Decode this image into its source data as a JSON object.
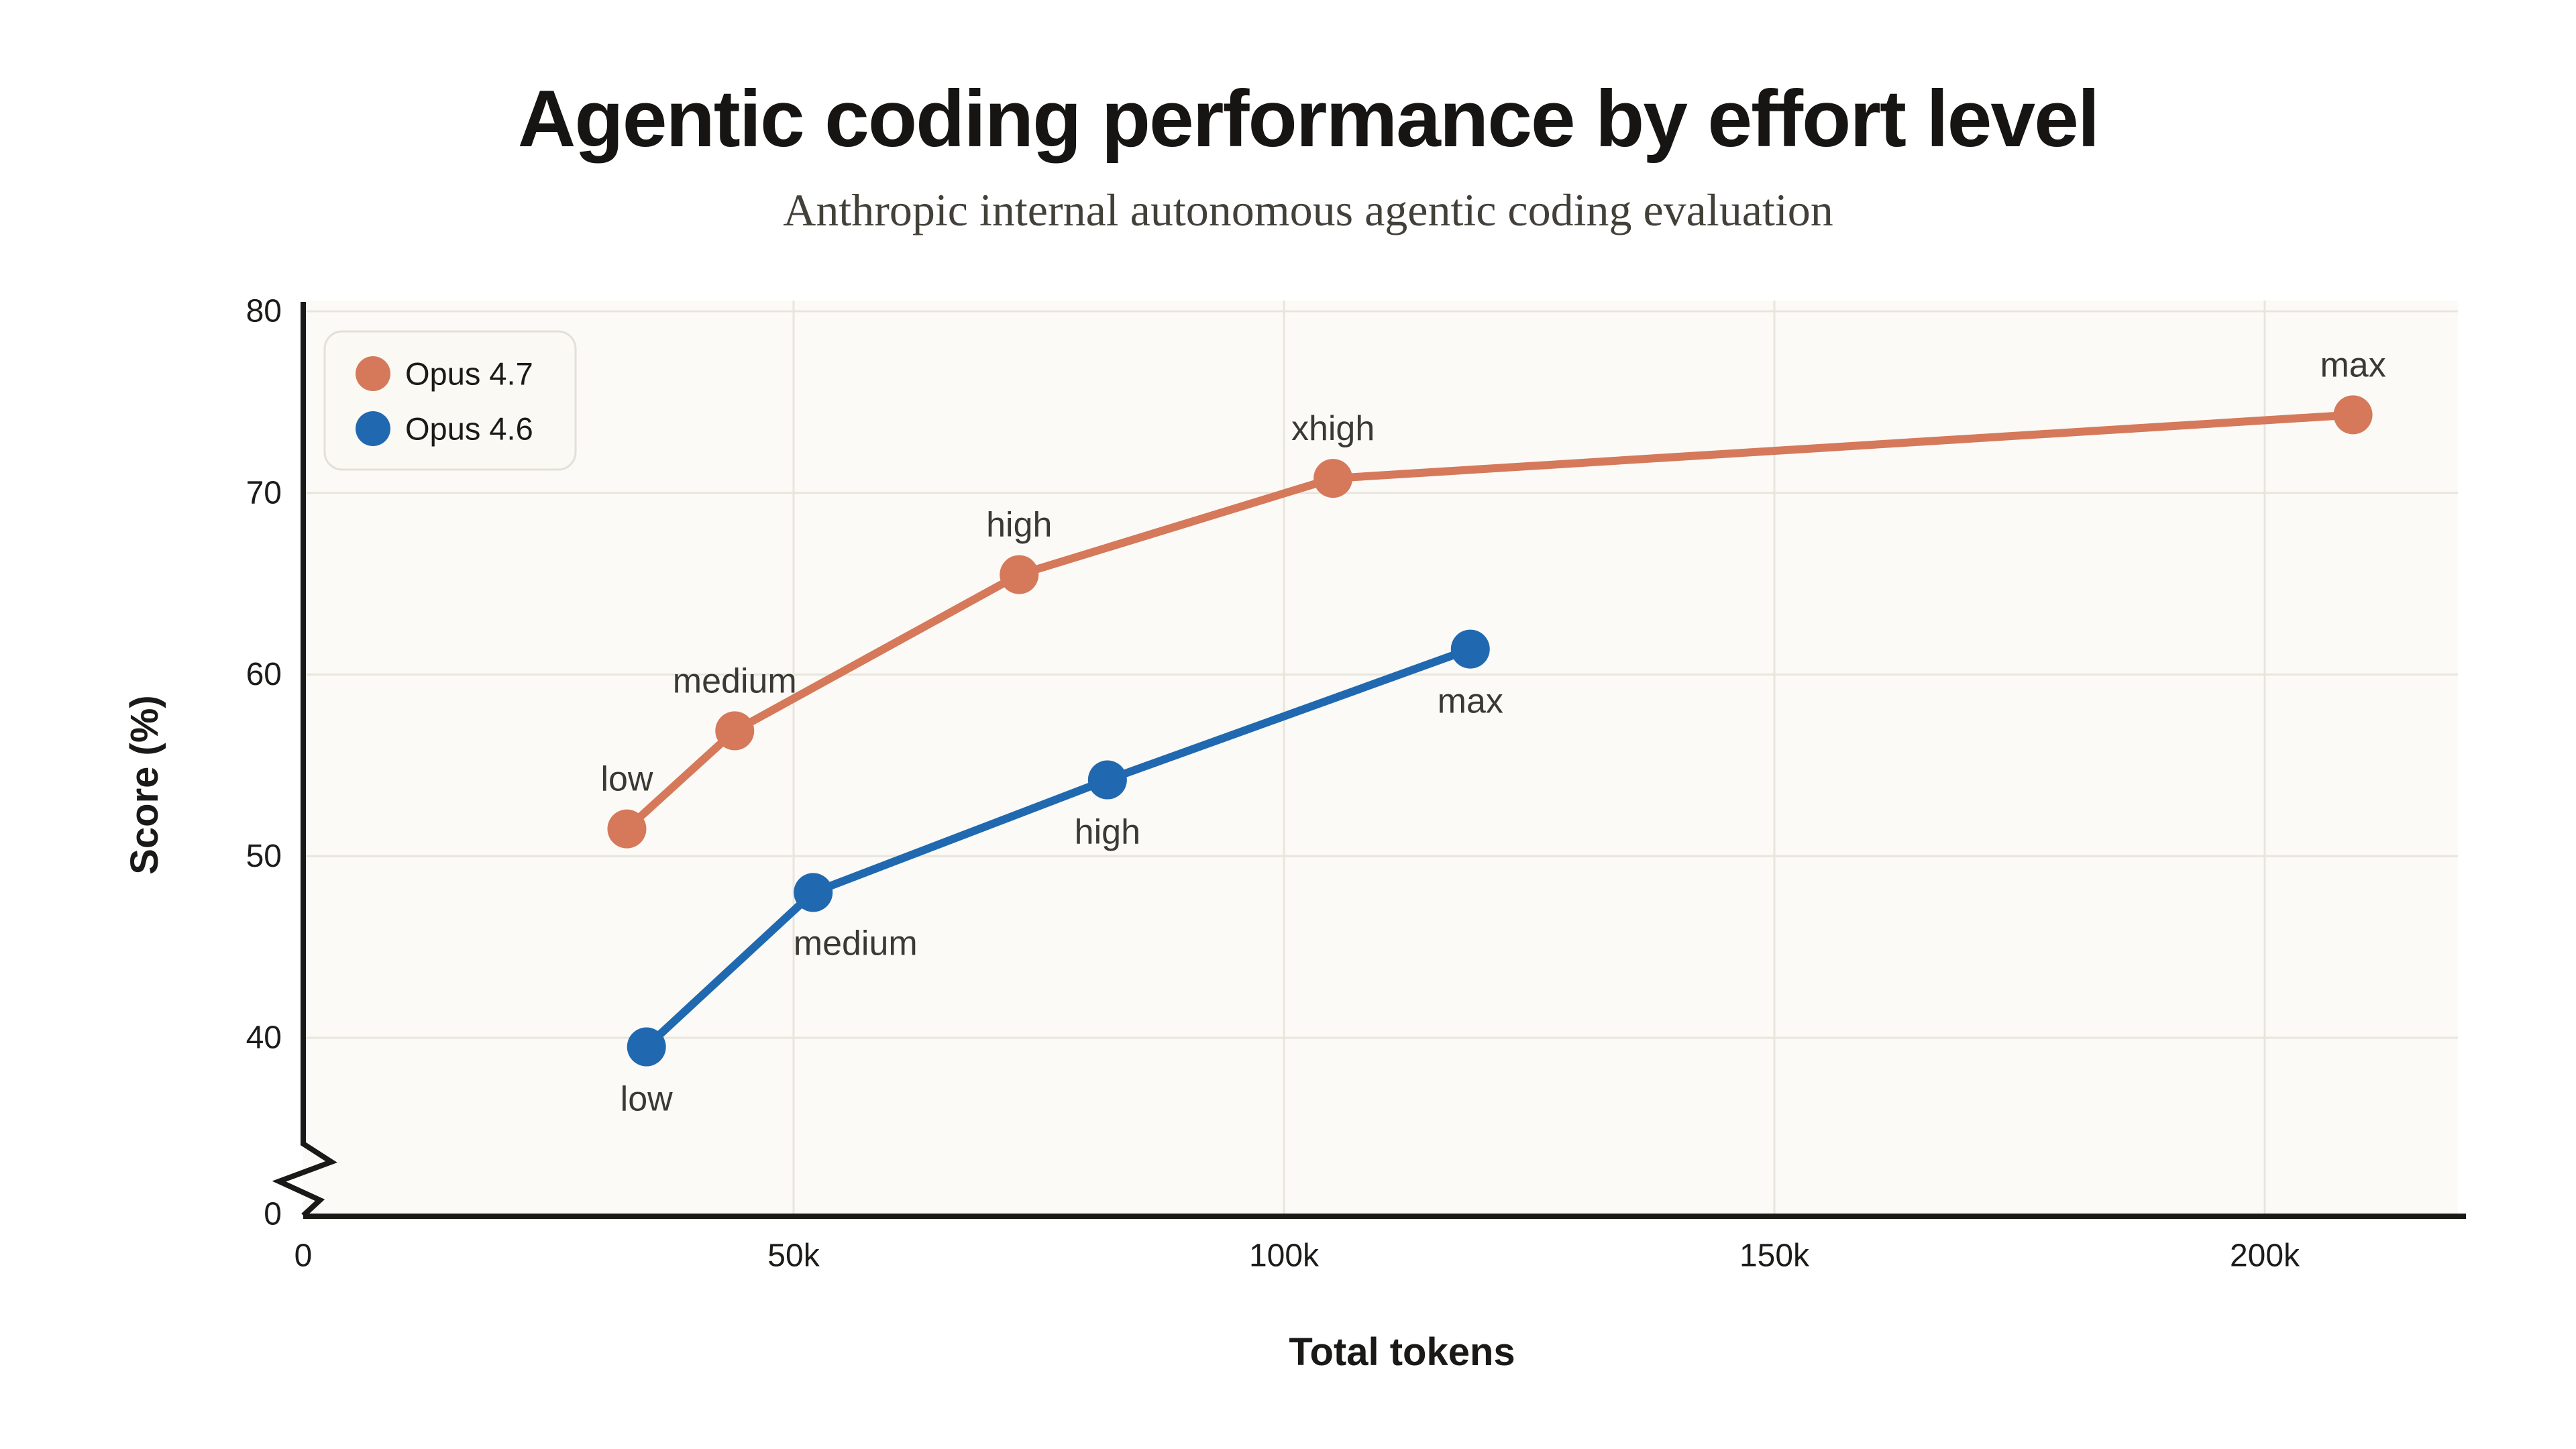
{
  "title": "Agentic coding performance by effort level",
  "subtitle": "Anthropic internal autonomous agentic coding evaluation",
  "x_axis": {
    "label": "Total tokens",
    "ticks": [
      {
        "label": "0",
        "value": 0
      },
      {
        "label": "50k",
        "value": 50
      },
      {
        "label": "100k",
        "value": 100
      },
      {
        "label": "150k",
        "value": 150
      },
      {
        "label": "200k",
        "value": 200
      }
    ]
  },
  "y_axis": {
    "label": "Score (%)",
    "has_break": true,
    "ticks": [
      {
        "label": "0",
        "value": 0
      },
      {
        "label": "40",
        "value": 40
      },
      {
        "label": "50",
        "value": 50
      },
      {
        "label": "60",
        "value": 60
      },
      {
        "label": "70",
        "value": 70
      },
      {
        "label": "80",
        "value": 80
      }
    ]
  },
  "style": {
    "orange": "#D5795A",
    "blue": "#2069B0",
    "plot_background": "#FBFAF6",
    "gridline_color": "#E8E5DC",
    "axis_color": "#1A1917",
    "page_background": "#FFFFFF"
  },
  "chart_data": {
    "type": "line",
    "title": "Agentic coding performance by effort level",
    "subtitle": "Anthropic internal autonomous agentic coding evaluation",
    "xlabel": "Total tokens",
    "ylabel": "Score (%)",
    "x_unit": "tokens (thousands)",
    "xlim": [
      0,
      220
    ],
    "ylim_visible": [
      40,
      80
    ],
    "y_axis_break_between": [
      0,
      40
    ],
    "grid": true,
    "legend_position": "top-left",
    "series": [
      {
        "name": "Opus 4.7",
        "color": "#D5795A",
        "points": [
          {
            "x_tokens_k": 33,
            "y": 51.5,
            "label": "low",
            "label_pos": "above"
          },
          {
            "x_tokens_k": 44,
            "y": 56.9,
            "label": "medium",
            "label_pos": "above"
          },
          {
            "x_tokens_k": 73,
            "y": 65.5,
            "label": "high",
            "label_pos": "above"
          },
          {
            "x_tokens_k": 105,
            "y": 70.8,
            "label": "xhigh",
            "label_pos": "above"
          },
          {
            "x_tokens_k": 209,
            "y": 74.3,
            "label": "max",
            "label_pos": "above"
          }
        ]
      },
      {
        "name": "Opus 4.6",
        "color": "#2069B0",
        "points": [
          {
            "x_tokens_k": 35,
            "y": 39.5,
            "label": "low",
            "label_pos": "below"
          },
          {
            "x_tokens_k": 52,
            "y": 48.0,
            "label": "medium",
            "label_pos": "below-right"
          },
          {
            "x_tokens_k": 82,
            "y": 54.2,
            "label": "high",
            "label_pos": "below"
          },
          {
            "x_tokens_k": 119,
            "y": 61.4,
            "label": "max",
            "label_pos": "below"
          }
        ]
      }
    ]
  }
}
